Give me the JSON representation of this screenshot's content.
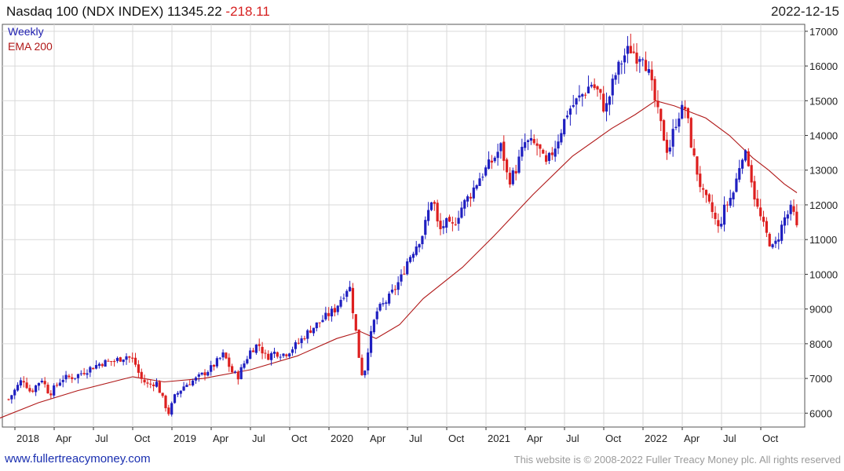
{
  "header": {
    "title": "Nasdaq 100 (NDX INDEX) 11345.22",
    "change": "-218.11",
    "date": "2022-12-15"
  },
  "footer": {
    "site": "www.fullertreacymoney.com",
    "copyright": "This website is © 2008-2022 Fuller Treacy Money plc. All rights reserved"
  },
  "colors": {
    "up": "#1f1fc0",
    "down": "#dd1f1f",
    "ema": "#b01818",
    "grid": "#d9d9d9",
    "axis": "#333333"
  },
  "chart_data": {
    "type": "candlestick",
    "legend": [
      "Weekly",
      "EMA 200"
    ],
    "legend_placement": "top-left",
    "y_axis": {
      "position": "right",
      "ylim": [
        5600,
        17200
      ],
      "ticks": [
        6000,
        7000,
        8000,
        9000,
        10000,
        11000,
        12000,
        13000,
        14000,
        15000,
        16000,
        17000
      ]
    },
    "x_axis": {
      "tick_labels": [
        "2018",
        "Apr",
        "Jul",
        "Oct",
        "2019",
        "Apr",
        "Jul",
        "Oct",
        "2020",
        "Apr",
        "Jul",
        "Oct",
        "2021",
        "Apr",
        "Jul",
        "Oct",
        "2022",
        "Apr",
        "Jul",
        "Oct"
      ]
    },
    "grid": true,
    "close_path": [
      [
        2017.96,
        6400
      ],
      [
        2018.05,
        7000
      ],
      [
        2018.1,
        6600
      ],
      [
        2018.17,
        7000
      ],
      [
        2018.22,
        6550
      ],
      [
        2018.3,
        7000
      ],
      [
        2018.38,
        7050
      ],
      [
        2018.46,
        7250
      ],
      [
        2018.55,
        7450
      ],
      [
        2018.63,
        7500
      ],
      [
        2018.71,
        7650
      ],
      [
        2018.76,
        7500
      ],
      [
        2018.8,
        7000
      ],
      [
        2018.85,
        6800
      ],
      [
        2018.9,
        6900
      ],
      [
        2018.95,
        6300
      ],
      [
        2018.98,
        6000
      ],
      [
        2019.02,
        6500
      ],
      [
        2019.08,
        6800
      ],
      [
        2019.16,
        7000
      ],
      [
        2019.25,
        7300
      ],
      [
        2019.33,
        7700
      ],
      [
        2019.38,
        7200
      ],
      [
        2019.42,
        7050
      ],
      [
        2019.45,
        7350
      ],
      [
        2019.5,
        7800
      ],
      [
        2019.55,
        8000
      ],
      [
        2019.6,
        7600
      ],
      [
        2019.65,
        7750
      ],
      [
        2019.72,
        7700
      ],
      [
        2019.8,
        8000
      ],
      [
        2019.88,
        8400
      ],
      [
        2019.96,
        8700
      ],
      [
        2020.04,
        9000
      ],
      [
        2020.1,
        9500
      ],
      [
        2020.13,
        9700
      ],
      [
        2020.17,
        8400
      ],
      [
        2020.2,
        7300
      ],
      [
        2020.22,
        7000
      ],
      [
        2020.25,
        7900
      ],
      [
        2020.3,
        8900
      ],
      [
        2020.38,
        9300
      ],
      [
        2020.46,
        9900
      ],
      [
        2020.5,
        10400
      ],
      [
        2020.55,
        10800
      ],
      [
        2020.6,
        11200
      ],
      [
        2020.66,
        12300
      ],
      [
        2020.7,
        11200
      ],
      [
        2020.74,
        11500
      ],
      [
        2020.78,
        11300
      ],
      [
        2020.84,
        11900
      ],
      [
        2020.9,
        12300
      ],
      [
        2020.96,
        12800
      ],
      [
        2021.03,
        13200
      ],
      [
        2021.1,
        13700
      ],
      [
        2021.14,
        12700
      ],
      [
        2021.18,
        12900
      ],
      [
        2021.25,
        13800
      ],
      [
        2021.33,
        13700
      ],
      [
        2021.38,
        13100
      ],
      [
        2021.45,
        13800
      ],
      [
        2021.52,
        14700
      ],
      [
        2021.6,
        15100
      ],
      [
        2021.67,
        15500
      ],
      [
        2021.72,
        15200
      ],
      [
        2021.76,
        14700
      ],
      [
        2021.82,
        15700
      ],
      [
        2021.88,
        16300
      ],
      [
        2021.92,
        16500
      ],
      [
        2021.96,
        16300
      ],
      [
        2022.0,
        16400
      ],
      [
        2022.05,
        15500
      ],
      [
        2022.1,
        14500
      ],
      [
        2022.16,
        13500
      ],
      [
        2022.22,
        14600
      ],
      [
        2022.27,
        14800
      ],
      [
        2022.32,
        13400
      ],
      [
        2022.38,
        12300
      ],
      [
        2022.44,
        11800
      ],
      [
        2022.48,
        11300
      ],
      [
        2022.52,
        11900
      ],
      [
        2022.58,
        12400
      ],
      [
        2022.63,
        13500
      ],
      [
        2022.67,
        13300
      ],
      [
        2022.72,
        12000
      ],
      [
        2022.78,
        11200
      ],
      [
        2022.83,
        10700
      ],
      [
        2022.87,
        11200
      ],
      [
        2022.9,
        11600
      ],
      [
        2022.95,
        11900
      ],
      [
        2022.98,
        11300
      ]
    ],
    "ema_path": [
      [
        2017.9,
        5850
      ],
      [
        2018.15,
        6300
      ],
      [
        2018.4,
        6650
      ],
      [
        2018.75,
        7050
      ],
      [
        2018.95,
        6900
      ],
      [
        2019.2,
        7000
      ],
      [
        2019.5,
        7250
      ],
      [
        2019.8,
        7650
      ],
      [
        2020.05,
        8150
      ],
      [
        2020.2,
        8350
      ],
      [
        2020.3,
        8150
      ],
      [
        2020.45,
        8550
      ],
      [
        2020.6,
        9300
      ],
      [
        2020.85,
        10200
      ],
      [
        2021.05,
        11100
      ],
      [
        2021.3,
        12300
      ],
      [
        2021.55,
        13400
      ],
      [
        2021.8,
        14200
      ],
      [
        2021.95,
        14600
      ],
      [
        2022.08,
        15000
      ],
      [
        2022.2,
        14850
      ],
      [
        2022.4,
        14500
      ],
      [
        2022.55,
        14000
      ],
      [
        2022.7,
        13350
      ],
      [
        2022.8,
        13000
      ],
      [
        2022.9,
        12600
      ],
      [
        2022.98,
        12350
      ]
    ]
  }
}
